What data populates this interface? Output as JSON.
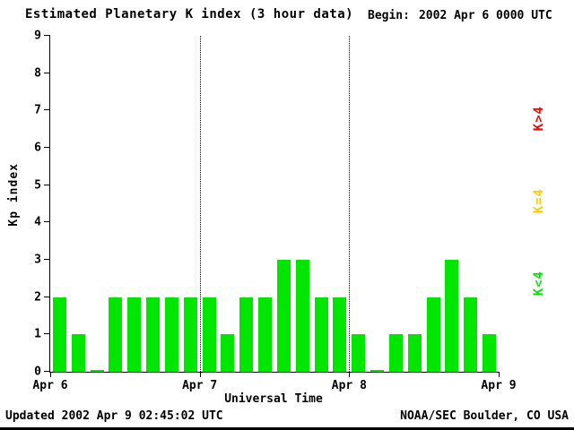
{
  "header": {
    "title": "Estimated Planetary K index (3 hour data)",
    "begin_label": "Begin:",
    "begin_value": "2002 Apr 6 0000 UTC"
  },
  "footer": {
    "updated": "Updated 2002 Apr  9 02:45:02 UTC",
    "source": "NOAA/SEC Boulder, CO USA"
  },
  "legend": [
    {
      "label": "K>4",
      "color": "#ff0000"
    },
    {
      "label": "K=4",
      "color": "#ffcc00"
    },
    {
      "label": "K<4",
      "color": "#00e600"
    }
  ],
  "chart_data": {
    "type": "bar",
    "title": "Estimated Planetary K index (3 hour data)",
    "xlabel": "Universal Time",
    "ylabel": "Kp index",
    "ylim": [
      0,
      9
    ],
    "y_ticks": [
      0,
      1,
      2,
      3,
      4,
      5,
      6,
      7,
      8,
      9
    ],
    "x_ticks": [
      "Apr 6",
      "Apr 7",
      "Apr 8",
      "Apr 9"
    ],
    "x_days": [
      "Apr 6",
      "Apr 7",
      "Apr 8"
    ],
    "bins_per_day": 8,
    "bin_hours": 3,
    "bar_color": "#00e600",
    "grid": "vertical dotted lines at day boundaries",
    "legend_position": "right, rotated",
    "values": [
      2,
      1,
      0,
      2,
      2,
      2,
      2,
      2,
      2,
      1,
      2,
      2,
      3,
      3,
      2,
      2,
      1,
      0,
      1,
      1,
      2,
      3,
      2,
      1
    ]
  }
}
